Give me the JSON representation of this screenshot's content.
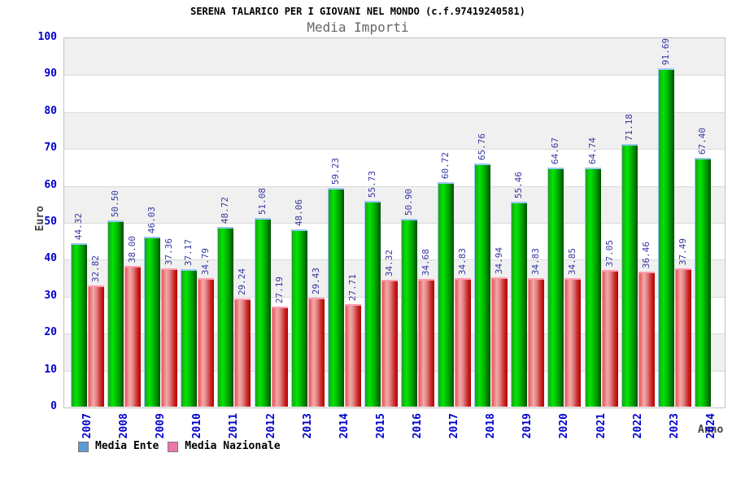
{
  "header": {
    "title": "SERENA TALARICO PER I GIOVANI NEL MONDO (c.f.97419240581)",
    "subtitle": "Media Importi"
  },
  "axes": {
    "y_label": "Euro",
    "x_label": "Anno"
  },
  "legend": {
    "items": [
      {
        "label": "Media Ente",
        "swatch_color": "#5b9bd5"
      },
      {
        "label": "Media Nazionale",
        "swatch_color": "#ee77aa"
      }
    ]
  },
  "chart_data": {
    "type": "bar",
    "title": "SERENA TALARICO PER I GIOVANI NEL MONDO (c.f.97419240581)",
    "subtitle": "Media Importi",
    "xlabel": "Anno",
    "ylabel": "Euro",
    "ylim": [
      0,
      100
    ],
    "ytick_step": 10,
    "grid": "horizontal-bands",
    "legend_position": "bottom-left",
    "value_labels": "rotated-90-above-bars",
    "categories": [
      "2007",
      "2008",
      "2009",
      "2010",
      "2011",
      "2012",
      "2013",
      "2014",
      "2015",
      "2016",
      "2017",
      "2018",
      "2019",
      "2020",
      "2021",
      "2022",
      "2023",
      "2024"
    ],
    "series": [
      {
        "name": "Media Ente",
        "values": [
          44.32,
          50.5,
          46.03,
          37.17,
          48.72,
          51.08,
          48.06,
          59.23,
          55.73,
          50.9,
          60.72,
          65.76,
          55.46,
          64.67,
          64.74,
          71.18,
          91.69,
          67.4
        ],
        "bar_gradient": [
          "#1f9e1f",
          "#00e600",
          "#00c300",
          "#008a00",
          "#014e01"
        ],
        "cap_color": "#9cc7f5"
      },
      {
        "name": "Media Nazionale",
        "values": [
          32.82,
          38.0,
          37.36,
          34.79,
          29.24,
          27.19,
          29.43,
          27.71,
          34.32,
          34.68,
          34.83,
          34.94,
          34.83,
          34.85,
          37.05,
          36.46,
          37.49,
          null
        ],
        "bar_gradient": [
          "#e85555",
          "#f2aaaa",
          "#e08585",
          "#cc2a2a",
          "#b30000"
        ],
        "cap_color": "#ff9bb0"
      }
    ],
    "colors": {
      "tick_label": "#0000cc",
      "value_label": "#3636a3",
      "band_gray": "#f0f0f0",
      "band_white": "#ffffff"
    }
  }
}
